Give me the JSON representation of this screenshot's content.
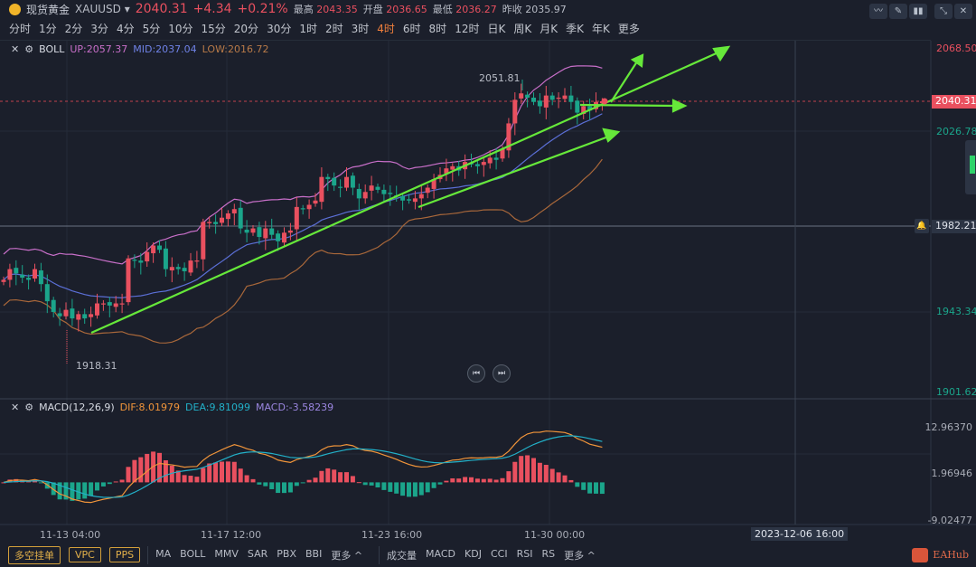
{
  "header": {
    "name": "现货黄金",
    "symbol": "XAUUSD",
    "price": "2040.31",
    "change": "+4.34",
    "change_pct": "+0.21%",
    "high_label": "最高",
    "high": "2043.35",
    "open_label": "开盘",
    "open": "2036.65",
    "low_label": "最低",
    "low": "2036.27",
    "prev_label": "昨收",
    "prev": "2035.97"
  },
  "timeframes": [
    "分时",
    "1分",
    "2分",
    "3分",
    "4分",
    "5分",
    "10分",
    "15分",
    "20分",
    "30分",
    "1时",
    "2时",
    "3时",
    "4时",
    "6时",
    "8时",
    "12时",
    "日K",
    "周K",
    "月K",
    "季K",
    "年K",
    "更多"
  ],
  "active_timeframe": "4时",
  "boll": {
    "name": "BOLL",
    "up": "UP:2057.37",
    "mid": "MID:2037.04",
    "low": "LOW:2016.72"
  },
  "macd": {
    "name": "MACD(12,26,9)",
    "dif": "DIF:8.01979",
    "dea": "DEA:9.81099",
    "macd": "MACD:-3.58239"
  },
  "price_axis": {
    "top": "2068.50",
    "current": "2040.31",
    "l2": "2026.78",
    "crosshair": "1982.21",
    "l4": "1943.34",
    "bottom": "1901.62"
  },
  "macd_axis": {
    "top": "12.96370",
    "mid": "1.96946",
    "bottom": "-9.02477"
  },
  "annotations": {
    "high": "2051.81",
    "low": "1918.31"
  },
  "time_axis": [
    "11-13 04:00",
    "11-17 12:00",
    "11-23 16:00",
    "11-30 00:00"
  ],
  "crosshair_time": "2023-12-06 16:00",
  "bottom": {
    "buttons": [
      "多空挂单",
      "VPC",
      "PPS"
    ],
    "main_indicators": [
      "MA",
      "BOLL",
      "MMV",
      "SAR",
      "PBX",
      "BBI",
      "更多 ^"
    ],
    "sub_indicators": [
      "成交量",
      "MACD",
      "KDJ",
      "CCI",
      "RSI",
      "RS",
      "更多 ^"
    ],
    "brand": "EAHub"
  },
  "colors": {
    "up": "#e9505f",
    "down": "#1ba58b",
    "boll_up": "#c86fc9",
    "boll_mid": "#5b6fd6",
    "boll_low": "#a8673a",
    "dif": "#f0943a",
    "dea": "#22b0c8",
    "trend": "#66e83a"
  },
  "closes": [
    1957,
    1962,
    1960,
    1958,
    1957,
    1962,
    1955,
    1947,
    1942,
    1940,
    1943,
    1939,
    1941,
    1939,
    1941,
    1946,
    1946,
    1945,
    1946,
    1946,
    1967,
    1966,
    1965,
    1970,
    1973,
    1971,
    1962,
    1963,
    1962,
    1961,
    1966,
    1966,
    1984,
    1984,
    1983,
    1986,
    1988,
    1990,
    1981,
    1979,
    1981,
    1977,
    1981,
    1978,
    1975,
    1979,
    1980,
    1991,
    1990,
    1992,
    1994,
    2005,
    2004,
    2001,
    2000,
    2005,
    2000,
    1995,
    1998,
    2001,
    1999,
    1997,
    1997,
    1996,
    1994,
    1994,
    1995,
    1997,
    2000,
    2004,
    2006,
    2009,
    2010,
    2008,
    2012,
    2011,
    2010,
    2012,
    2014,
    2013,
    2018,
    2030,
    2041,
    2044,
    2042,
    2040,
    2038,
    2043,
    2041,
    2042,
    2043,
    2040,
    2035,
    2038,
    2036,
    2040,
    2040.31
  ]
}
